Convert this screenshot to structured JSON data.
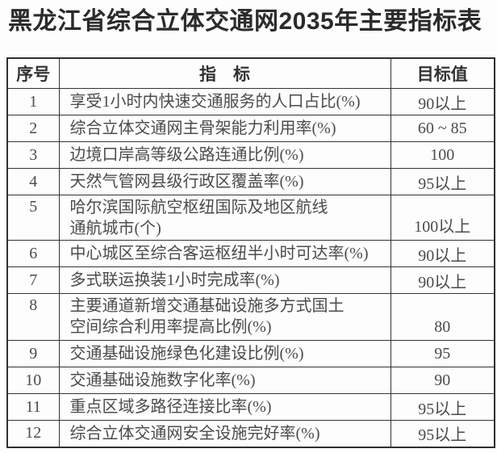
{
  "title": "黑龙江省综合立体交通网2035年主要指标表",
  "colors": {
    "background": "#fdfdfd",
    "border": "#2f2f2f",
    "title_text": "#2b2b2b",
    "body_text": "#4b4b4b"
  },
  "table": {
    "headers": {
      "index": "序号",
      "indicator": "指　标",
      "target": "目标值"
    },
    "rows": [
      {
        "index": "1",
        "indicator": "享受1小时内快速交通服务的人口占比(%)",
        "target": "90以上",
        "multiline": false
      },
      {
        "index": "2",
        "indicator": "综合立体交通网主骨架能力利用率(%)",
        "target": "60 ~ 85",
        "multiline": false
      },
      {
        "index": "3",
        "indicator": "边境口岸高等级公路连通比例(%)",
        "target": "100",
        "multiline": false
      },
      {
        "index": "4",
        "indicator": "天然气管网县级行政区覆盖率(%)",
        "target": "95以上",
        "multiline": false
      },
      {
        "index": "5",
        "indicator": "哈尔滨国际航空枢纽国际及地区航线\n通航城市(个)",
        "target": "100以上",
        "multiline": true
      },
      {
        "index": "6",
        "indicator": "中心城区至综合客运枢纽半小时可达率(%)",
        "target": "90以上",
        "multiline": false
      },
      {
        "index": "7",
        "indicator": "多式联运换装1小时完成率(%)",
        "target": "90以上",
        "multiline": false
      },
      {
        "index": "8",
        "indicator": "主要通道新增交通基础设施多方式国土\n空间综合利用率提高比例(%)",
        "target": "80",
        "multiline": true
      },
      {
        "index": "9",
        "indicator": "交通基础设施绿色化建设比例(%)",
        "target": "95",
        "multiline": false
      },
      {
        "index": "10",
        "indicator": "交通基础设施数字化率(%)",
        "target": "90",
        "multiline": false
      },
      {
        "index": "11",
        "indicator": "重点区域多路径连接比率(%)",
        "target": "95以上",
        "multiline": false
      },
      {
        "index": "12",
        "indicator": "综合立体交通网安全设施完好率(%)",
        "target": "95以上",
        "multiline": false
      }
    ]
  }
}
